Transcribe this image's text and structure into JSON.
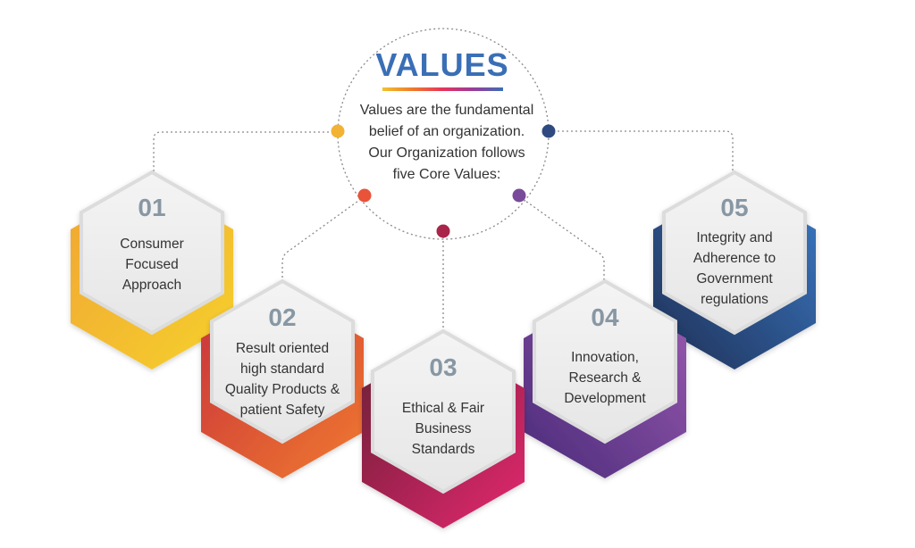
{
  "title": "VALUES",
  "intro_lines": [
    "Values are the fundamental",
    "belief of an organization.",
    "Our Organization follows",
    "five Core Values:"
  ],
  "colors": {
    "title": "#3a6fb6",
    "v1": "#f2b233",
    "v2": "#e8533a",
    "v3": "#d92a6b",
    "v4": "#7a4a9a",
    "v5": "#2f5f9e"
  },
  "values": [
    {
      "number": "01",
      "lines": [
        "Consumer",
        "Focused",
        "Approach"
      ]
    },
    {
      "number": "02",
      "lines": [
        "Result oriented",
        "high standard",
        "Quality Products &",
        "patient Safety"
      ]
    },
    {
      "number": "03",
      "lines": [
        "Ethical & Fair",
        "Business",
        "Standards"
      ]
    },
    {
      "number": "04",
      "lines": [
        "Innovation,",
        "Research &",
        "Development"
      ]
    },
    {
      "number": "05",
      "lines": [
        "Integrity and",
        "Adherence to",
        "Government",
        "regulations"
      ]
    }
  ]
}
